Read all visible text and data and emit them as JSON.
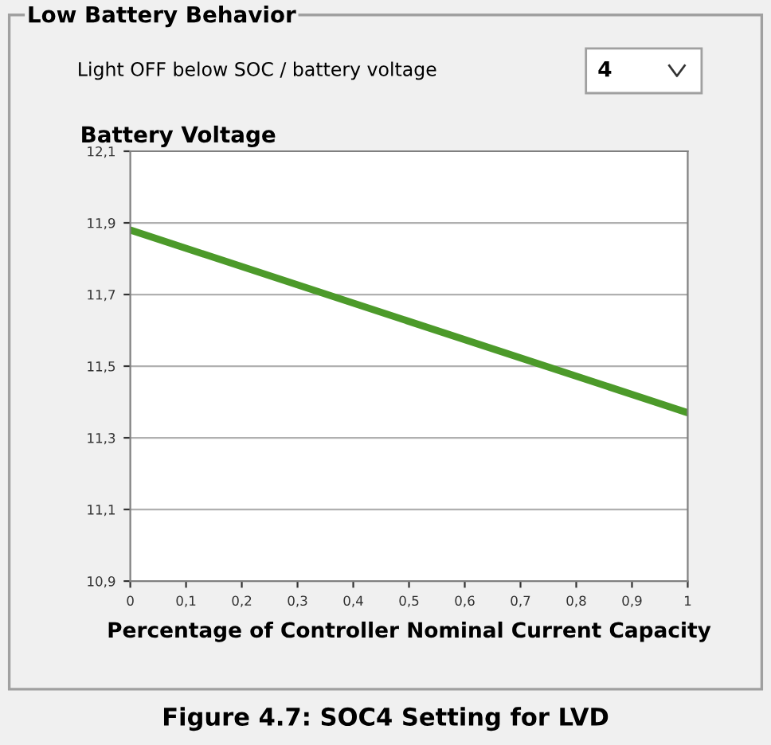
{
  "chart_data": {
    "type": "line",
    "title": "Battery Voltage",
    "xlabel": "Percentage of Controller Nominal Current Capacity",
    "x": [
      0,
      1
    ],
    "series": [
      {
        "color": "#4c9a2a",
        "values": [
          11.88,
          11.37
        ]
      }
    ],
    "xlim": [
      0,
      1
    ],
    "ylim": [
      10.9,
      12.1
    ],
    "xticks": [
      0,
      {
        "value": 0.1,
        "label": "0,1"
      },
      {
        "value": 0.2,
        "label": "0,2"
      },
      {
        "value": 0.3,
        "label": "0,3"
      },
      {
        "value": 0.4,
        "label": "0,4"
      },
      {
        "value": 0.5,
        "label": "0,5"
      },
      {
        "value": 0.6,
        "label": "0,6"
      },
      {
        "value": 0.7,
        "label": "0,7"
      },
      {
        "value": 0.8,
        "label": "0,8"
      },
      {
        "value": 0.9,
        "label": "0,9"
      },
      1
    ],
    "yticks": [
      {
        "value": 10.9,
        "label": "10,9"
      },
      {
        "value": 11.1,
        "label": "11,1"
      },
      {
        "value": 11.3,
        "label": "11,3"
      },
      {
        "value": 11.5,
        "label": "11,5"
      },
      {
        "value": 11.7,
        "label": "11,7"
      },
      {
        "value": 11.9,
        "label": "11,9"
      },
      {
        "value": 12.1,
        "label": "12,1"
      }
    ],
    "grid": "y",
    "legend": false,
    "marker": "none",
    "line_style": "solid",
    "annotations": [
      "Low Battery Behavior",
      "Light OFF below SOC / battery voltage",
      "4",
      "Figure 4.7: SOC4 Setting for LVD"
    ]
  }
}
